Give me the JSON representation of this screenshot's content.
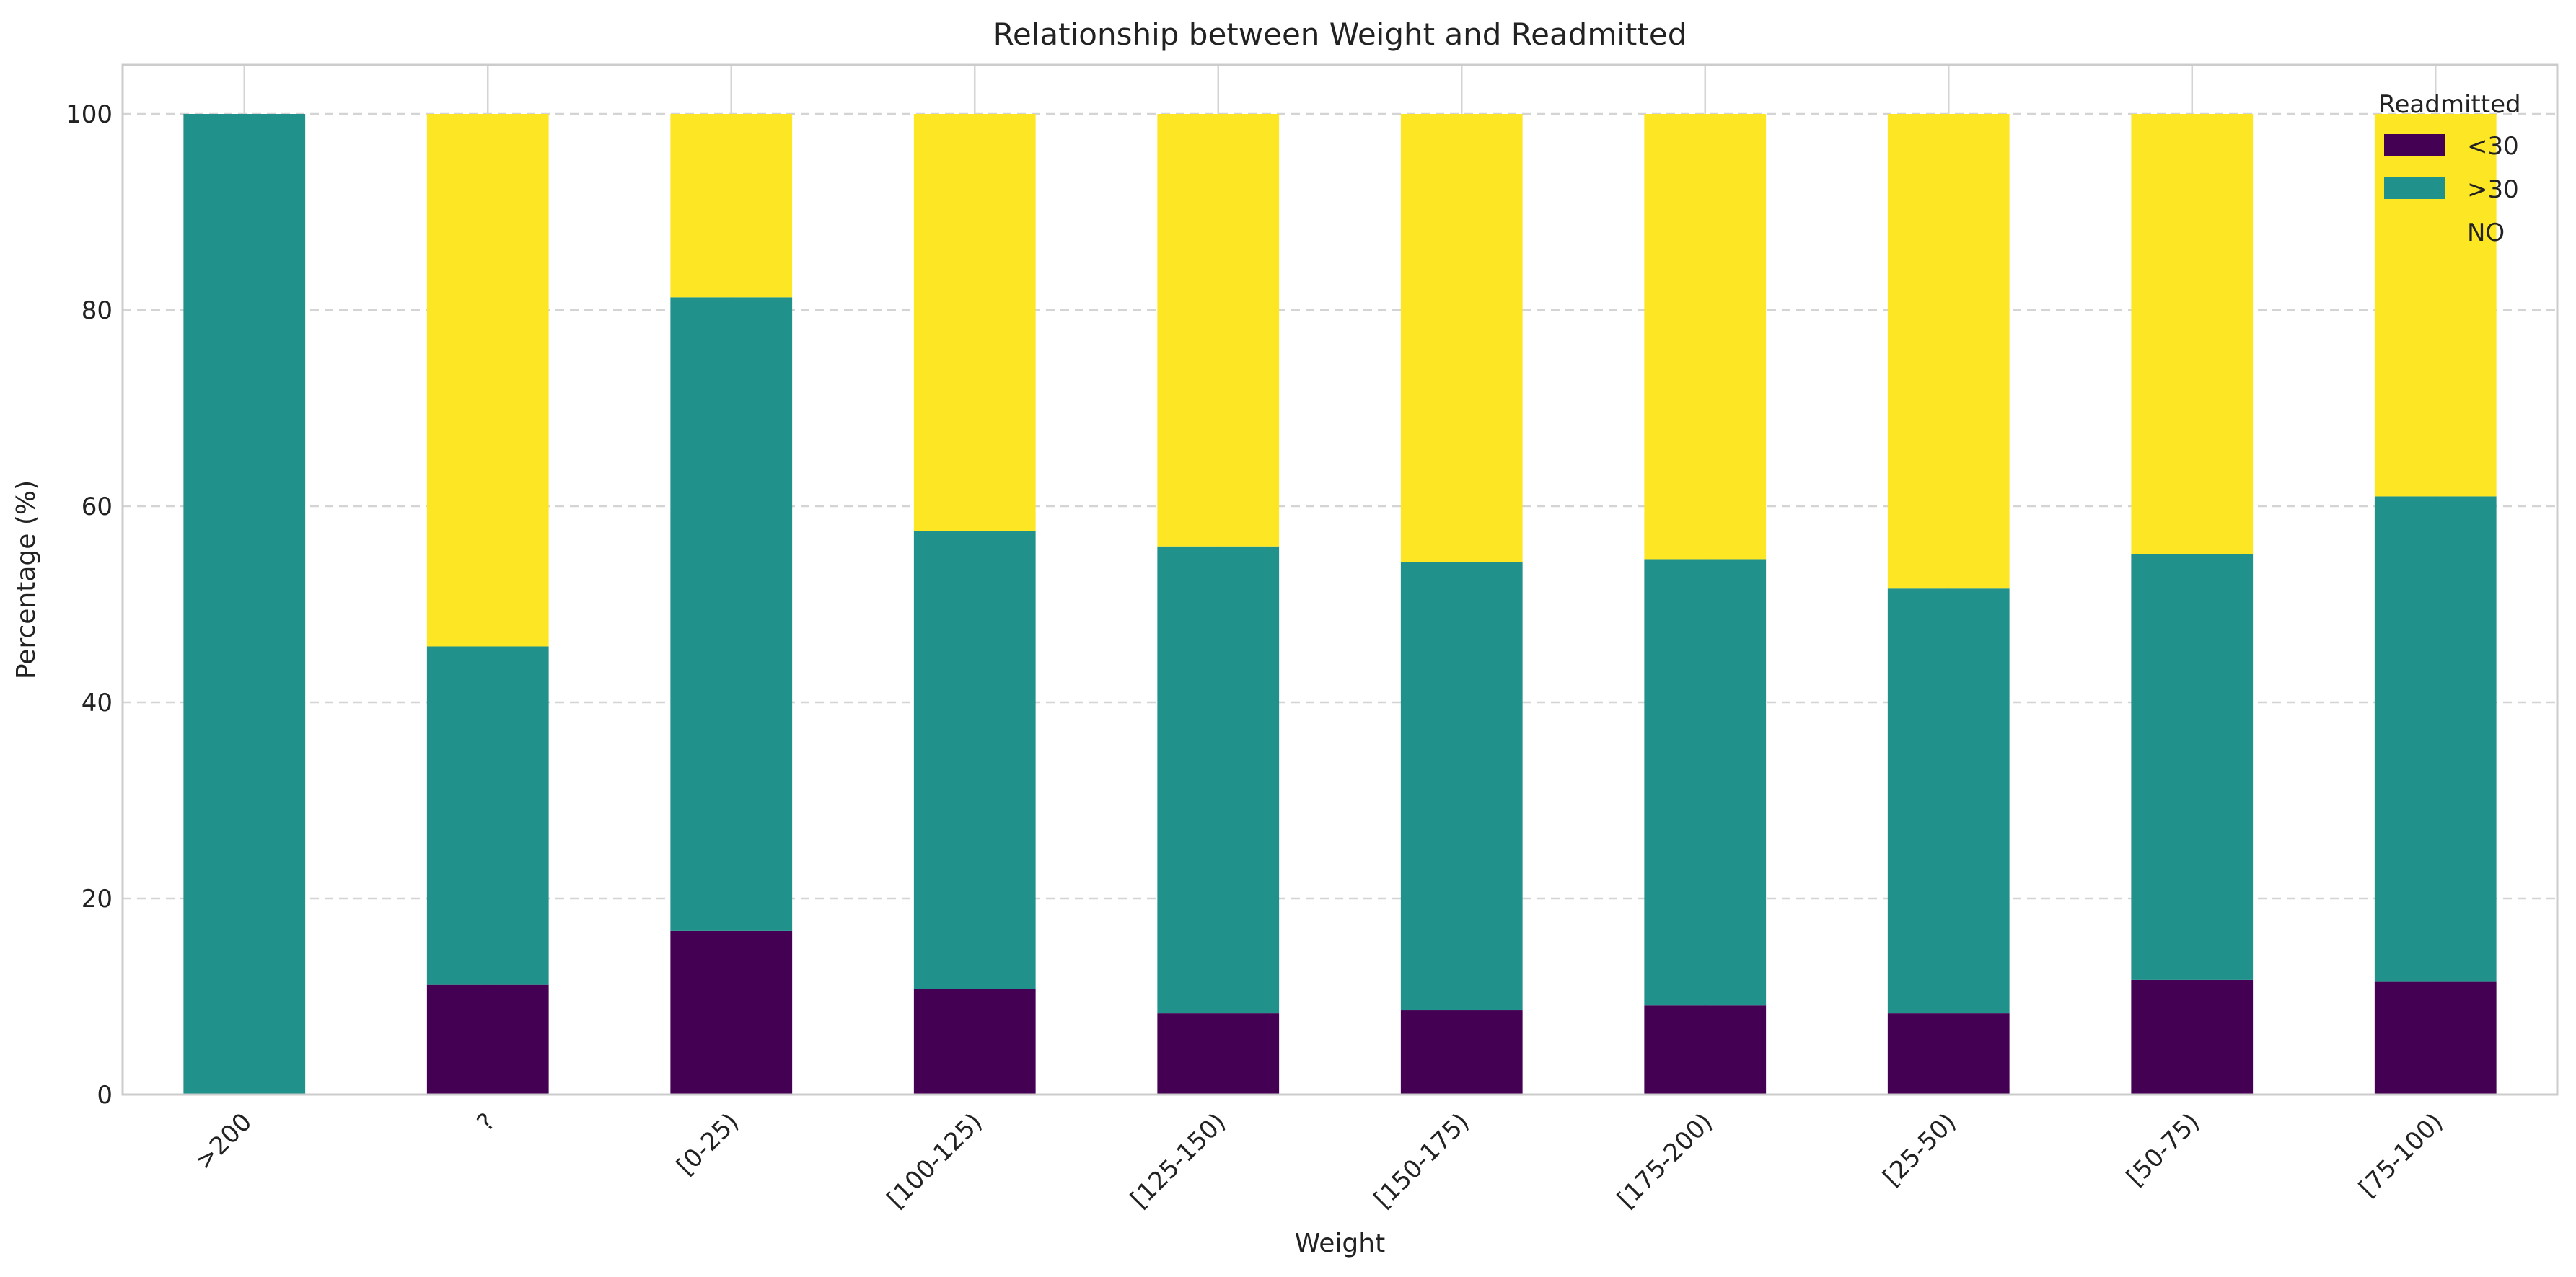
{
  "chart_data": {
    "type": "bar",
    "stacked": true,
    "title": "Relationship between Weight and Readmitted",
    "xlabel": "Weight",
    "ylabel": "Percentage (%)",
    "ylim": [
      0,
      105
    ],
    "yticks": [
      0,
      20,
      40,
      60,
      80,
      100
    ],
    "grid": true,
    "legend_title": "Readmitted",
    "legend_position": "top-right",
    "categories": [
      ">200",
      "?",
      "[0-25)",
      "[100-125)",
      "[125-150)",
      "[150-175)",
      "[175-200)",
      "[25-50)",
      "[50-75)",
      "[75-100)"
    ],
    "series": [
      {
        "name": "<30",
        "color": "#440154",
        "values": [
          0,
          11.2,
          16.7,
          10.8,
          8.3,
          8.6,
          9.1,
          8.3,
          11.7,
          11.5
        ]
      },
      {
        "name": ">30",
        "color": "#21918c",
        "values": [
          100,
          34.5,
          64.6,
          46.7,
          47.6,
          45.7,
          45.5,
          43.3,
          43.4,
          49.5
        ]
      },
      {
        "name": "NO",
        "color": "#fde725",
        "values": [
          0,
          54.3,
          18.7,
          42.5,
          44.1,
          45.7,
          45.4,
          48.4,
          44.9,
          39.0
        ]
      }
    ]
  }
}
